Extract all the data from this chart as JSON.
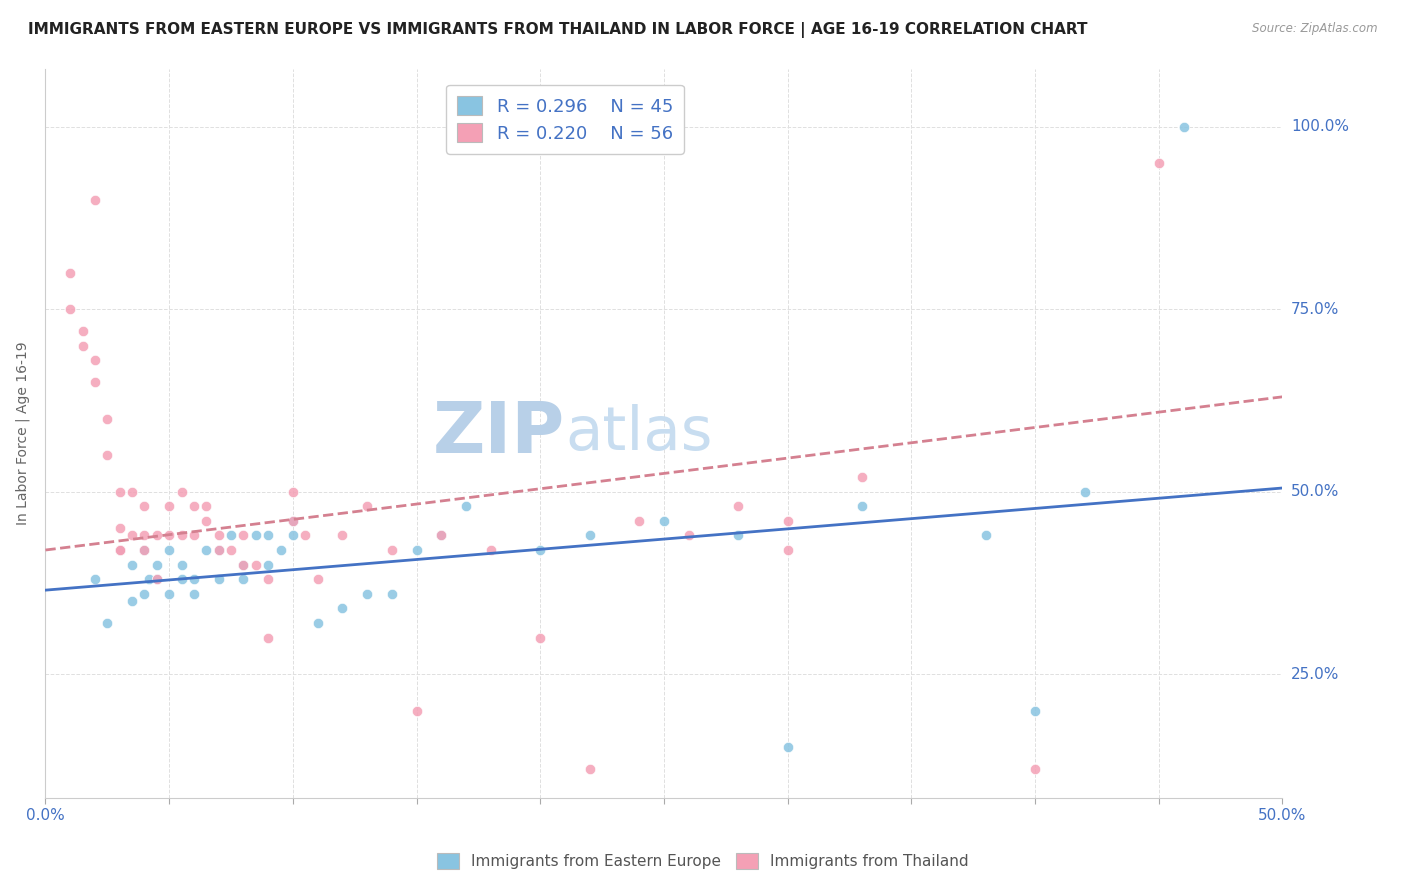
{
  "title": "IMMIGRANTS FROM EASTERN EUROPE VS IMMIGRANTS FROM THAILAND IN LABOR FORCE | AGE 16-19 CORRELATION CHART",
  "source": "Source: ZipAtlas.com",
  "ylabel": "In Labor Force | Age 16-19",
  "xlim": [
    0.0,
    0.5
  ],
  "ylim": [
    0.08,
    1.08
  ],
  "xticks": [
    0.0,
    0.05,
    0.1,
    0.15,
    0.2,
    0.25,
    0.3,
    0.35,
    0.4,
    0.45,
    0.5
  ],
  "ytick_positions": [
    0.25,
    0.5,
    0.75,
    1.0
  ],
  "ytick_labels": [
    "25.0%",
    "50.0%",
    "75.0%",
    "100.0%"
  ],
  "blue_color": "#89c4e1",
  "pink_color": "#f4a0b5",
  "blue_line_color": "#4472c4",
  "pink_line_color": "#d48090",
  "watermark_left": "ZIP",
  "watermark_right": "atlas",
  "legend_R_blue": "R = 0.296",
  "legend_N_blue": "N = 45",
  "legend_R_pink": "R = 0.220",
  "legend_N_pink": "N = 56",
  "blue_scatter_x": [
    0.02,
    0.025,
    0.03,
    0.035,
    0.035,
    0.04,
    0.04,
    0.042,
    0.045,
    0.045,
    0.05,
    0.05,
    0.055,
    0.055,
    0.06,
    0.06,
    0.065,
    0.07,
    0.07,
    0.075,
    0.08,
    0.08,
    0.085,
    0.09,
    0.09,
    0.095,
    0.1,
    0.1,
    0.11,
    0.12,
    0.13,
    0.14,
    0.15,
    0.16,
    0.17,
    0.2,
    0.22,
    0.25,
    0.28,
    0.3,
    0.33,
    0.38,
    0.4,
    0.42,
    0.46
  ],
  "blue_scatter_y": [
    0.38,
    0.32,
    0.42,
    0.35,
    0.4,
    0.42,
    0.36,
    0.38,
    0.38,
    0.4,
    0.42,
    0.36,
    0.4,
    0.38,
    0.38,
    0.36,
    0.42,
    0.42,
    0.38,
    0.44,
    0.38,
    0.4,
    0.44,
    0.4,
    0.44,
    0.42,
    0.46,
    0.44,
    0.32,
    0.34,
    0.36,
    0.36,
    0.42,
    0.44,
    0.48,
    0.42,
    0.44,
    0.46,
    0.44,
    0.15,
    0.48,
    0.44,
    0.2,
    0.5,
    1.0
  ],
  "pink_scatter_x": [
    0.01,
    0.01,
    0.015,
    0.015,
    0.02,
    0.02,
    0.02,
    0.025,
    0.025,
    0.03,
    0.03,
    0.03,
    0.03,
    0.035,
    0.035,
    0.04,
    0.04,
    0.04,
    0.045,
    0.045,
    0.05,
    0.05,
    0.055,
    0.055,
    0.06,
    0.06,
    0.065,
    0.065,
    0.07,
    0.07,
    0.075,
    0.08,
    0.08,
    0.085,
    0.09,
    0.09,
    0.1,
    0.1,
    0.105,
    0.11,
    0.12,
    0.13,
    0.14,
    0.15,
    0.16,
    0.18,
    0.2,
    0.22,
    0.24,
    0.26,
    0.28,
    0.3,
    0.3,
    0.33,
    0.4,
    0.45
  ],
  "pink_scatter_y": [
    0.75,
    0.8,
    0.7,
    0.72,
    0.9,
    0.68,
    0.65,
    0.55,
    0.6,
    0.42,
    0.45,
    0.5,
    0.42,
    0.44,
    0.5,
    0.44,
    0.48,
    0.42,
    0.44,
    0.38,
    0.44,
    0.48,
    0.44,
    0.5,
    0.44,
    0.48,
    0.46,
    0.48,
    0.42,
    0.44,
    0.42,
    0.4,
    0.44,
    0.4,
    0.3,
    0.38,
    0.5,
    0.46,
    0.44,
    0.38,
    0.44,
    0.48,
    0.42,
    0.2,
    0.44,
    0.42,
    0.3,
    0.12,
    0.46,
    0.44,
    0.48,
    0.46,
    0.42,
    0.52,
    0.12,
    0.95
  ],
  "blue_trend_x": [
    0.0,
    0.5
  ],
  "blue_trend_y": [
    0.365,
    0.505
  ],
  "pink_trend_x": [
    0.0,
    0.5
  ],
  "pink_trend_y": [
    0.42,
    0.63
  ],
  "background_color": "#ffffff",
  "grid_color": "#e0e0e0",
  "title_fontsize": 11,
  "axis_label_fontsize": 10,
  "tick_label_color": "#4472c4",
  "watermark_color_zip": "#b8d0e8",
  "watermark_color_atlas": "#c8ddf0",
  "watermark_fontsize": 52
}
